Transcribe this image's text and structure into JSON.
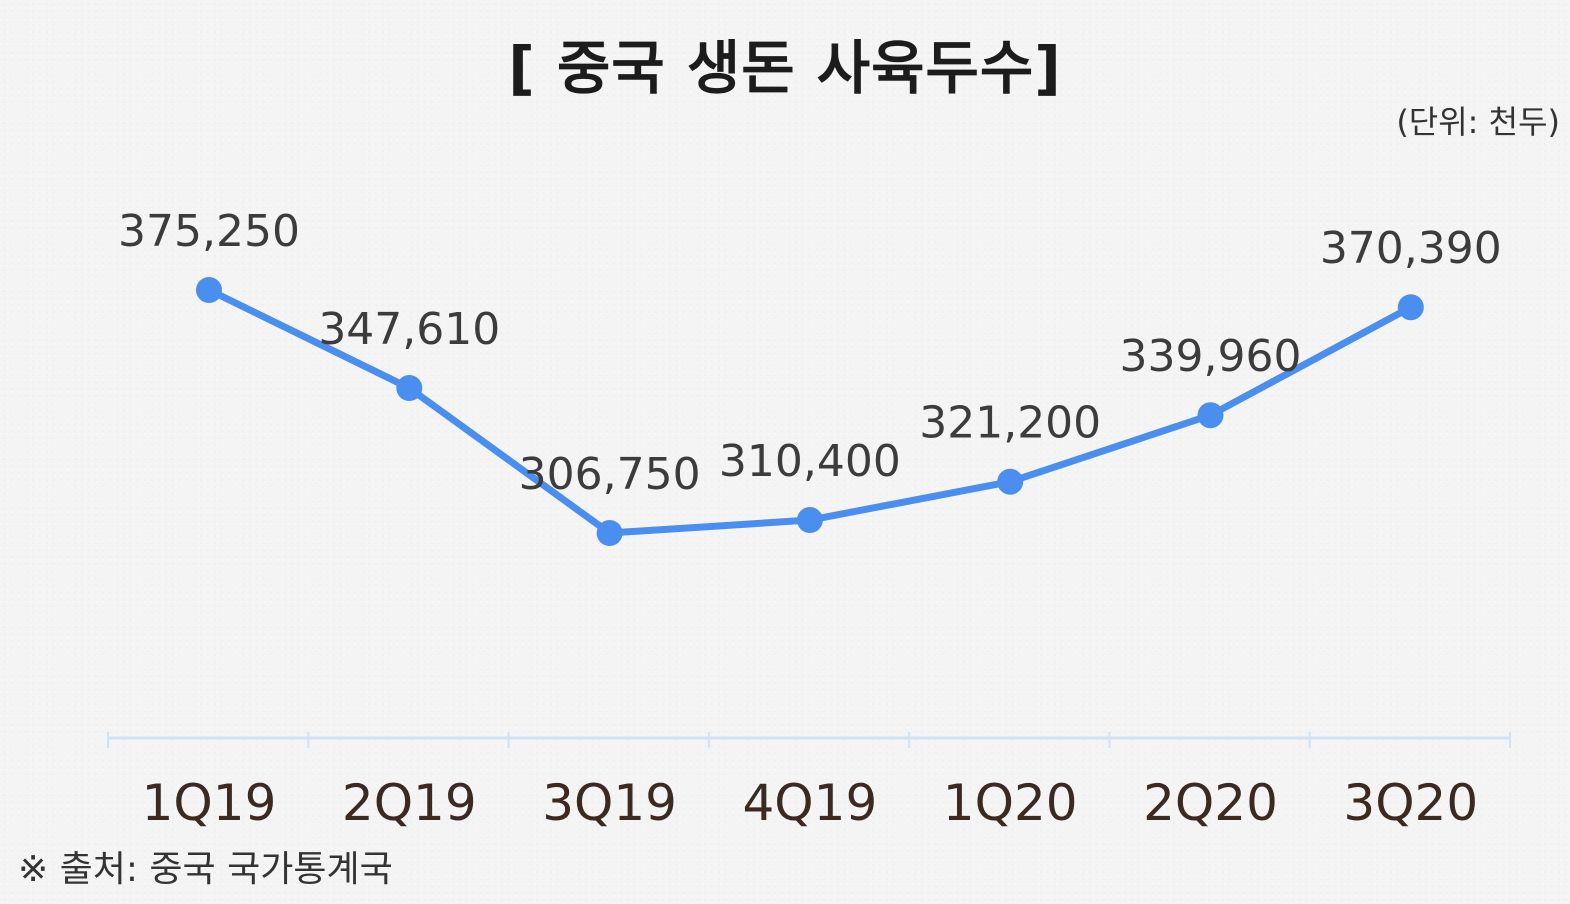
{
  "chart_data": {
    "type": "line",
    "title": "[ 중국 생돈 사육두수]",
    "unit_note": "(단위: 천두)",
    "source_note": "※ 출처: 중국 국가통계국",
    "categories": [
      "1Q19",
      "2Q19",
      "3Q19",
      "4Q19",
      "1Q20",
      "2Q20",
      "3Q20"
    ],
    "series": [
      {
        "values": [
          375250,
          347610,
          306750,
          310400,
          321200,
          339960,
          370390
        ],
        "labels": [
          "375,250",
          "347,610",
          "306,750",
          "310,400",
          "321,200",
          "339,960",
          "370,390"
        ]
      }
    ],
    "ylim": [
      220000,
      390000
    ],
    "grid": false,
    "legend": "none",
    "colors": {
      "line": "#4a8ff0",
      "axis": "#cfe3f5"
    }
  }
}
